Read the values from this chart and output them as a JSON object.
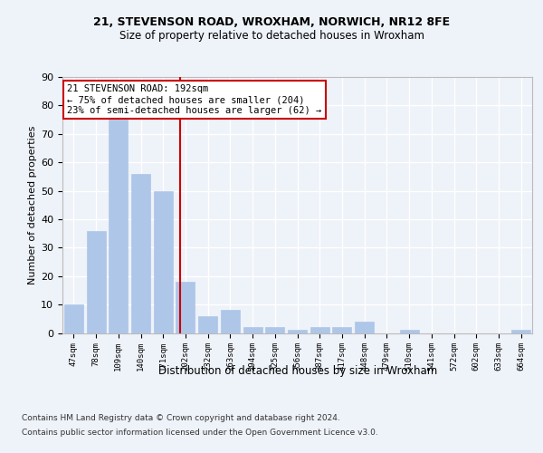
{
  "title1": "21, STEVENSON ROAD, WROXHAM, NORWICH, NR12 8FE",
  "title2": "Size of property relative to detached houses in Wroxham",
  "xlabel": "Distribution of detached houses by size in Wroxham",
  "ylabel": "Number of detached properties",
  "categories": [
    "47sqm",
    "78sqm",
    "109sqm",
    "140sqm",
    "171sqm",
    "202sqm",
    "232sqm",
    "263sqm",
    "294sqm",
    "325sqm",
    "356sqm",
    "387sqm",
    "417sqm",
    "448sqm",
    "479sqm",
    "510sqm",
    "541sqm",
    "572sqm",
    "602sqm",
    "633sqm",
    "664sqm"
  ],
  "values": [
    10,
    36,
    75,
    56,
    50,
    18,
    6,
    8,
    2,
    2,
    1,
    2,
    2,
    4,
    0,
    1,
    0,
    0,
    0,
    0,
    1
  ],
  "bar_color": "#aec6e8",
  "bar_edgecolor": "#aec6e8",
  "vline_x": 4.75,
  "vline_color": "#cc0000",
  "annotation_text": "21 STEVENSON ROAD: 192sqm\n← 75% of detached houses are smaller (204)\n23% of semi-detached houses are larger (62) →",
  "annotation_box_edgecolor": "#cc0000",
  "annotation_box_facecolor": "#ffffff",
  "footer1": "Contains HM Land Registry data © Crown copyright and database right 2024.",
  "footer2": "Contains public sector information licensed under the Open Government Licence v3.0.",
  "bg_color": "#eef2f9",
  "plot_bg_color": "#eef2f9",
  "grid_color": "#ffffff",
  "yticks": [
    0,
    10,
    20,
    30,
    40,
    50,
    60,
    70,
    80,
    90
  ],
  "ylim": [
    0,
    90
  ]
}
